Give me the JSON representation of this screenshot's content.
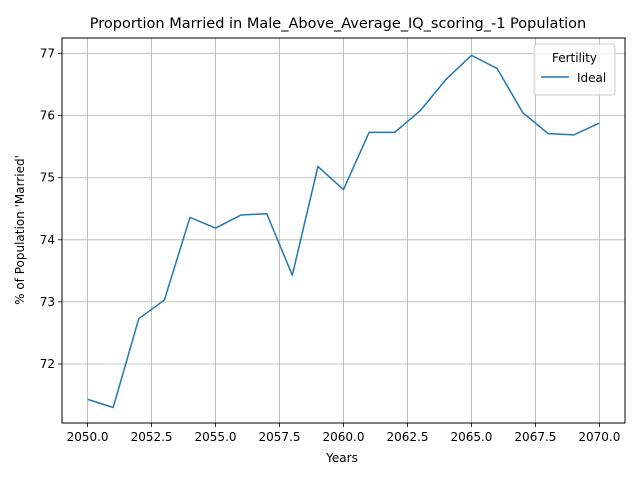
{
  "chart_data": {
    "type": "line",
    "title": "Proportion Married in Male_Above_Average_IQ_scoring_-1 Population",
    "xlabel": "Years",
    "ylabel": "% of Population 'Married'",
    "xlim": [
      2049.0,
      2071.0
    ],
    "ylim": [
      71.05,
      77.25
    ],
    "x_ticks": [
      2050.0,
      2052.5,
      2055.0,
      2057.5,
      2060.0,
      2062.5,
      2065.0,
      2067.5,
      2070.0
    ],
    "x_tick_labels": [
      "2050.0",
      "2052.5",
      "2055.0",
      "2057.5",
      "2060.0",
      "2062.5",
      "2065.0",
      "2067.5",
      "2070.0"
    ],
    "y_ticks": [
      72,
      73,
      74,
      75,
      76,
      77
    ],
    "y_tick_labels": [
      "72",
      "73",
      "74",
      "75",
      "76",
      "77"
    ],
    "grid": true,
    "legend": {
      "title": "Fertility",
      "placement": "top-right",
      "entries": [
        "Ideal"
      ]
    },
    "series": [
      {
        "name": "Ideal",
        "color": "#1f77b4",
        "x": [
          2050,
          2051,
          2052,
          2053,
          2054,
          2055,
          2056,
          2057,
          2058,
          2059,
          2060,
          2061,
          2062,
          2063,
          2064,
          2065,
          2066,
          2067,
          2068,
          2069,
          2070
        ],
        "y": [
          71.43,
          71.3,
          72.73,
          73.03,
          74.36,
          74.19,
          74.4,
          74.42,
          73.43,
          75.18,
          74.81,
          75.73,
          75.73,
          76.08,
          76.58,
          76.97,
          76.76,
          76.05,
          75.71,
          75.69,
          75.88
        ]
      }
    ]
  }
}
